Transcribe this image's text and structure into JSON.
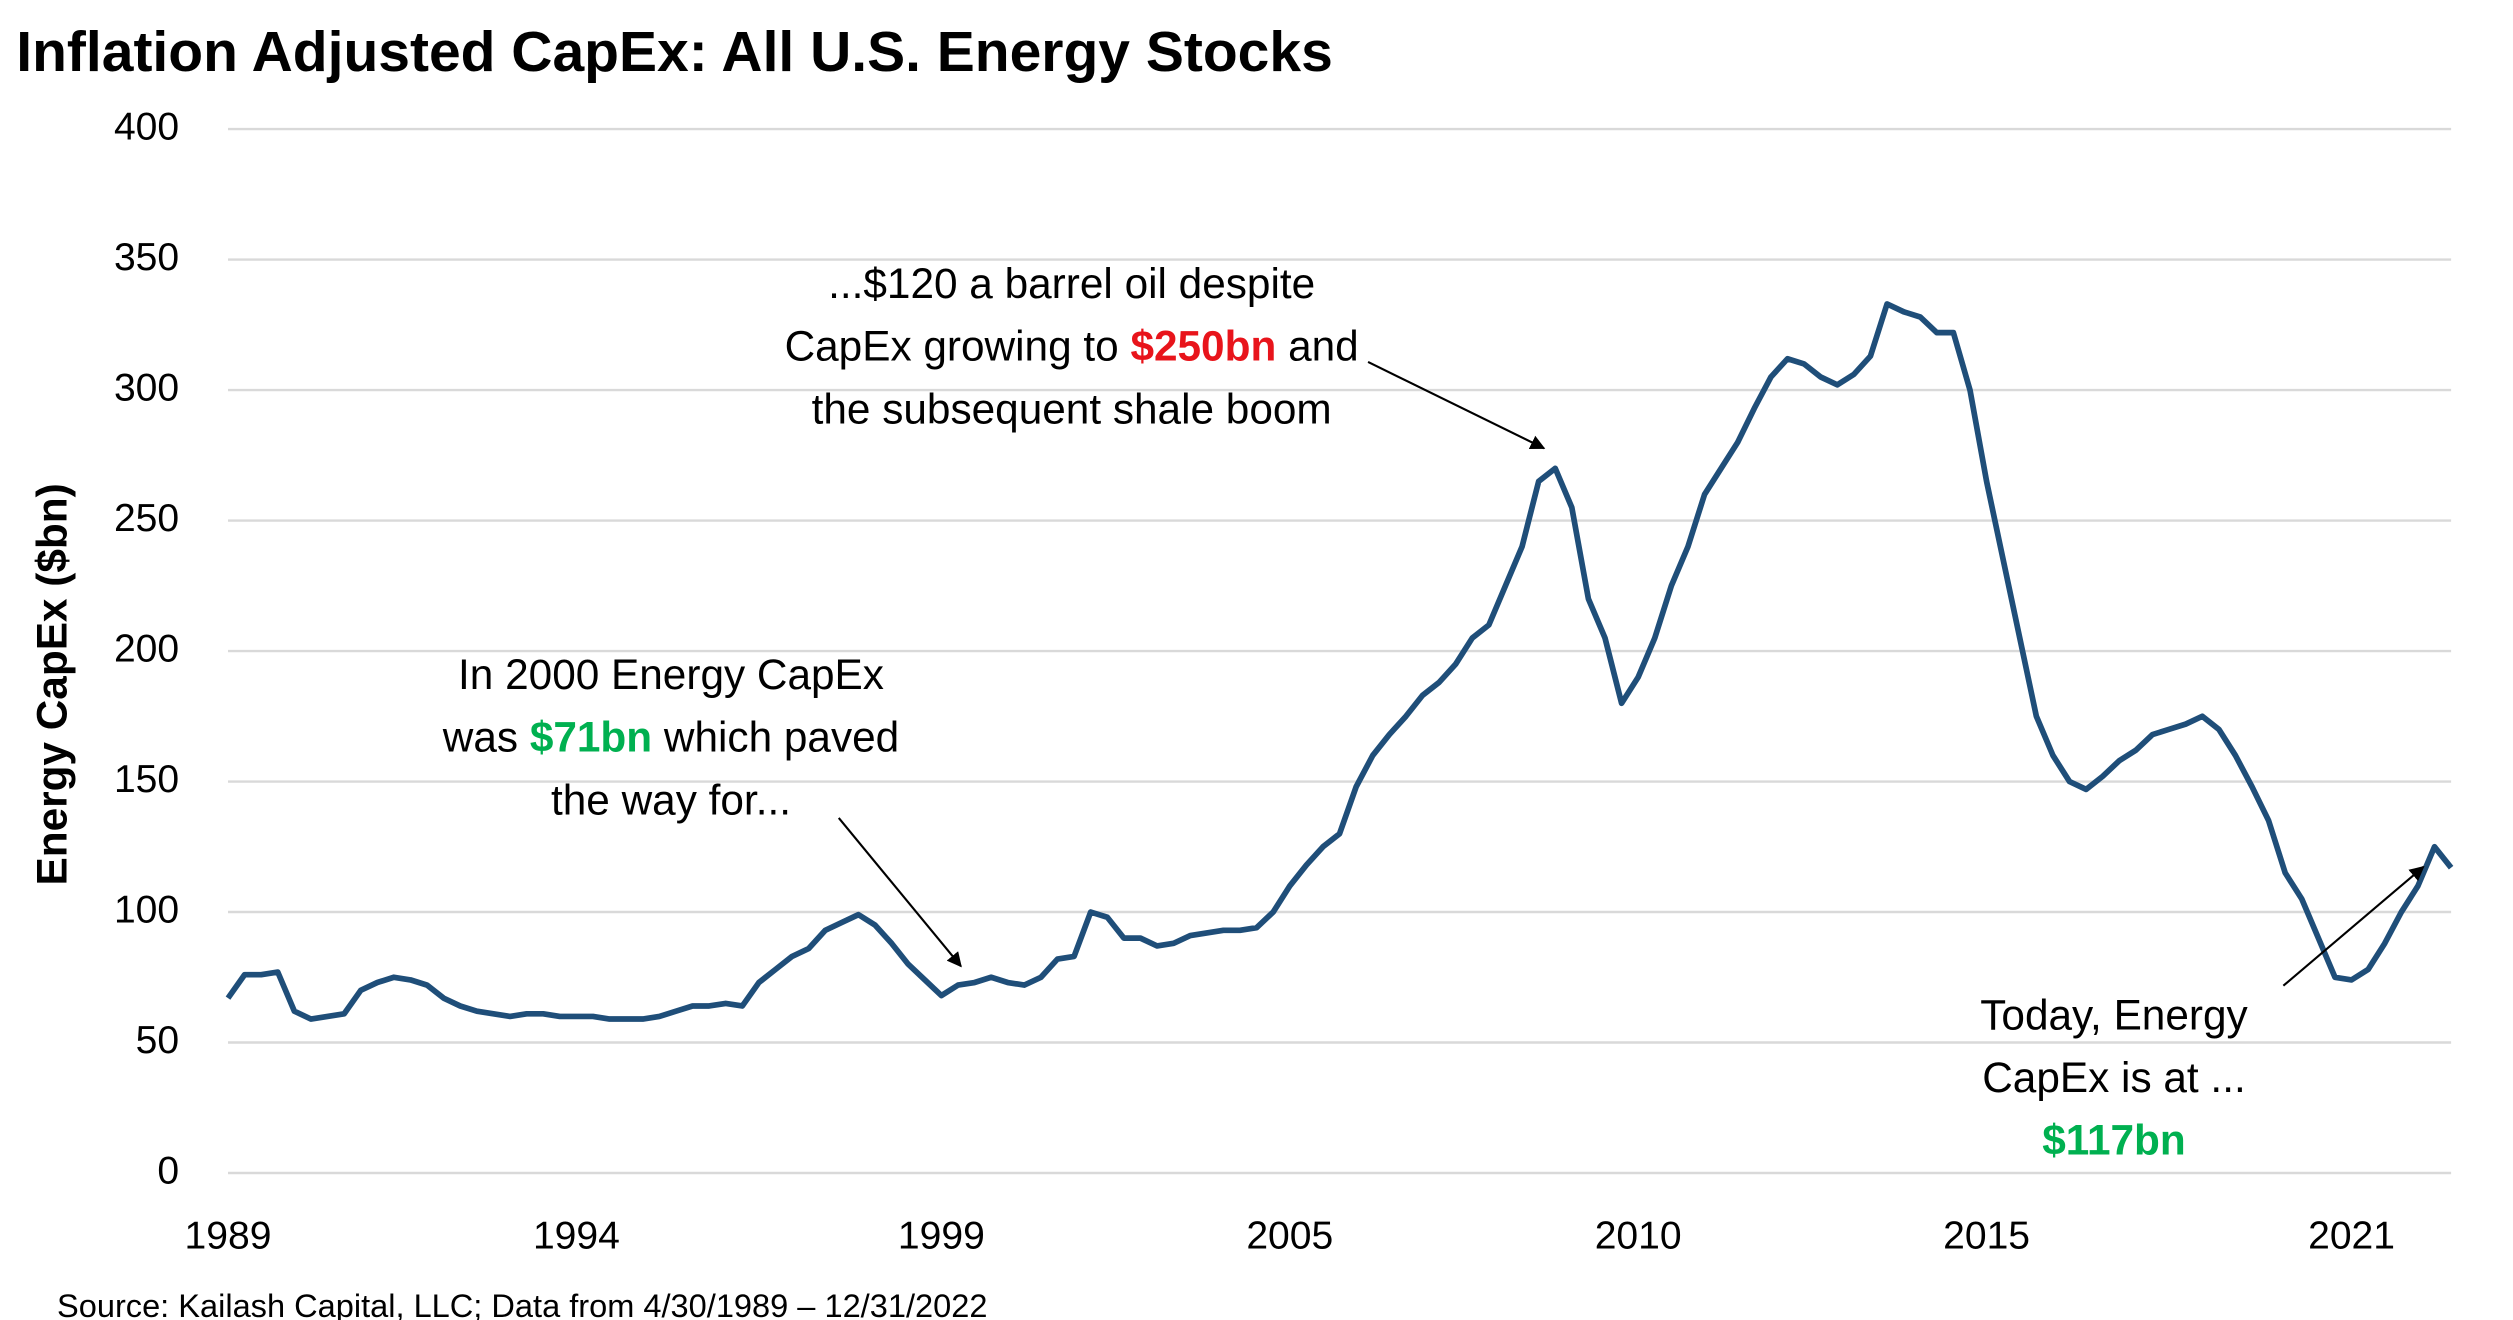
{
  "chart_data": {
    "type": "line",
    "title": "Inflation Adjusted CapEx: All U.S. Energy Stocks",
    "y_label": "Energy CapEx ($bn)",
    "source": "Source: Kailash Capital, LLC; Data from 4/30/1989 – 12/31/2022",
    "ylim": [
      0,
      400
    ],
    "yticks": [
      0,
      50,
      100,
      150,
      200,
      250,
      300,
      350,
      400
    ],
    "grid": true,
    "categories": [
      "1989",
      null,
      null,
      null,
      null,
      null,
      null,
      null,
      null,
      null,
      null,
      null,
      null,
      null,
      null,
      null,
      null,
      null,
      null,
      null,
      null,
      "1994",
      null,
      null,
      null,
      null,
      null,
      null,
      null,
      null,
      null,
      null,
      null,
      null,
      null,
      null,
      null,
      null,
      null,
      null,
      null,
      null,
      null,
      "1999",
      null,
      null,
      null,
      null,
      null,
      null,
      null,
      null,
      null,
      null,
      null,
      null,
      null,
      null,
      null,
      null,
      null,
      null,
      null,
      null,
      "2005",
      null,
      null,
      null,
      null,
      null,
      null,
      null,
      null,
      null,
      null,
      null,
      null,
      null,
      null,
      null,
      null,
      null,
      null,
      null,
      null,
      "2010",
      null,
      null,
      null,
      null,
      null,
      null,
      null,
      null,
      null,
      null,
      null,
      null,
      null,
      null,
      null,
      null,
      null,
      null,
      null,
      null,
      "2015",
      null,
      null,
      null,
      null,
      null,
      null,
      null,
      null,
      null,
      null,
      null,
      null,
      null,
      null,
      null,
      null,
      null,
      null,
      null,
      null,
      null,
      "2021",
      null,
      null,
      null,
      null,
      null,
      null
    ],
    "series": [
      {
        "color": "#1f4e79",
        "values": [
          67,
          76,
          76,
          77,
          62,
          59,
          60,
          61,
          70,
          73,
          75,
          74,
          72,
          67,
          64,
          62,
          61,
          60,
          61,
          61,
          60,
          60,
          60,
          59,
          59,
          59,
          60,
          62,
          64,
          64,
          65,
          64,
          73,
          78,
          83,
          86,
          93,
          96,
          99,
          95,
          88,
          80,
          74,
          68,
          72,
          73,
          75,
          73,
          72,
          75,
          82,
          83,
          100,
          98,
          90,
          90,
          87,
          88,
          91,
          92,
          93,
          93,
          94,
          100,
          110,
          118,
          125,
          130,
          148,
          160,
          168,
          175,
          183,
          188,
          195,
          205,
          210,
          225,
          240,
          265,
          270,
          255,
          220,
          205,
          180,
          190,
          205,
          225,
          240,
          260,
          270,
          280,
          293,
          305,
          312,
          310,
          305,
          302,
          306,
          313,
          333,
          330,
          328,
          322,
          322,
          300,
          265,
          235,
          205,
          175,
          160,
          150,
          147,
          152,
          158,
          162,
          168,
          170,
          172,
          175,
          170,
          160,
          148,
          135,
          115,
          105,
          90,
          75,
          74,
          78,
          88,
          100,
          110,
          125,
          117
        ]
      }
    ],
    "annotations": [
      {
        "lines": [
          [
            {
              "text": "In 2000 Energy CapEx"
            }
          ],
          [
            {
              "text": "was "
            },
            {
              "text": "$71bn",
              "color": "#00b050"
            },
            {
              "text": " which paved"
            }
          ],
          [
            {
              "text": "the way for..."
            }
          ]
        ]
      },
      {
        "lines": [
          [
            {
              "text": "...$120 a barrel oil despite"
            }
          ],
          [
            {
              "text": "CapEx growing to "
            },
            {
              "text": "$250bn",
              "color": "#e8141b"
            },
            {
              "text": " and"
            }
          ],
          [
            {
              "text": "the subsequent shale boom"
            }
          ]
        ]
      },
      {
        "lines": [
          [
            {
              "text": "Today, Energy"
            }
          ],
          [
            {
              "text": "CapEx is at ..."
            }
          ],
          [
            {
              "text": "$117bn",
              "color": "#00b050"
            }
          ]
        ]
      }
    ]
  }
}
